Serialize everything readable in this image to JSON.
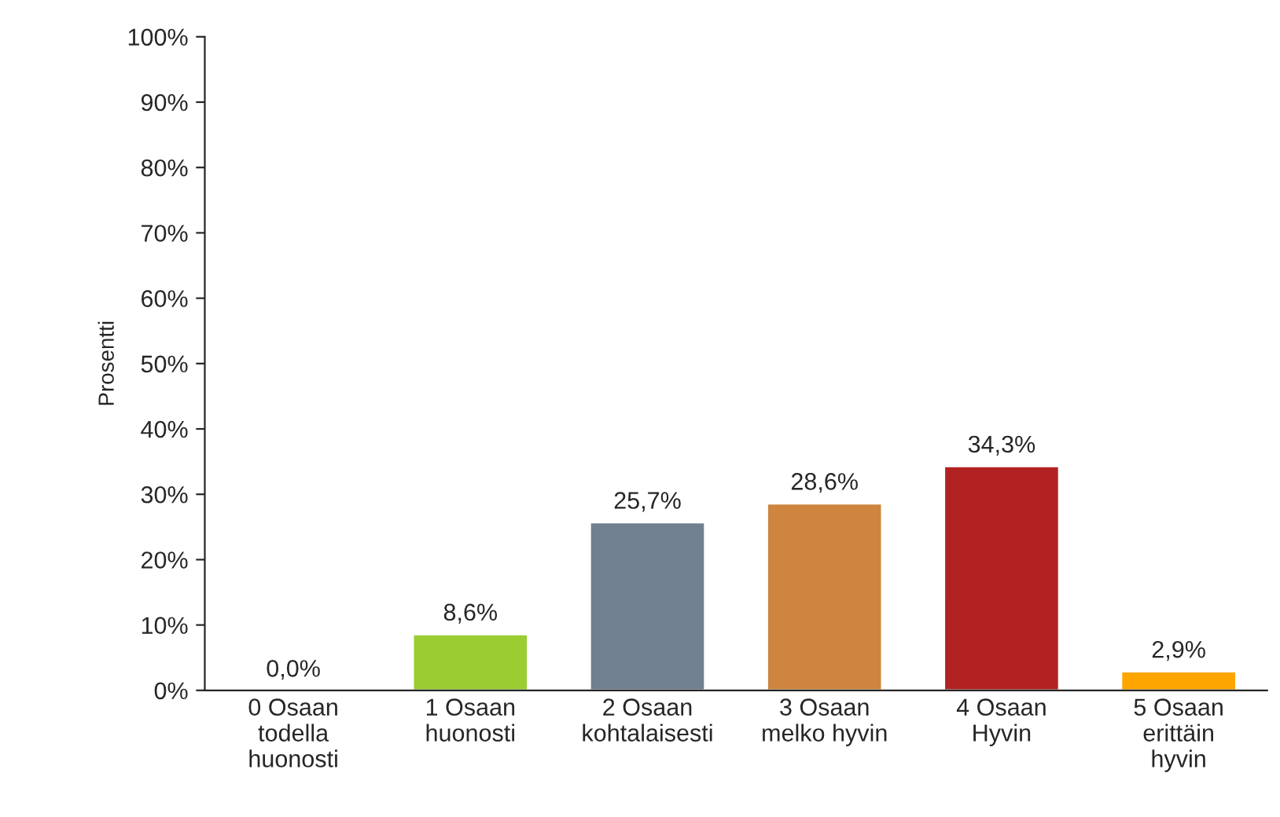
{
  "chart_data": {
    "type": "bar",
    "ylabel": "Prosentti",
    "categories": [
      "0 Osaan\ntodella\nhuonosti",
      "1 Osaan\nhuonosti",
      "2 Osaan\nkohtalaisesti",
      "3 Osaan\nmelko hyvin",
      "4 Osaan\nHyvin",
      "5 Osaan\nerittäin\nhyvin"
    ],
    "values": [
      0.0,
      8.6,
      25.7,
      28.6,
      34.3,
      2.9
    ],
    "colors": [
      null,
      "#9acd32",
      "#708090",
      "#cd853f",
      "#b22222",
      "#ffa500"
    ],
    "value_labels": [
      "0,0%",
      "8,6%",
      "25,7%",
      "28,6%",
      "34,3%",
      "2,9%"
    ],
    "ylim": [
      0,
      100
    ],
    "yticks": [
      {
        "value": 0,
        "label": "0%"
      },
      {
        "value": 10,
        "label": "10%"
      },
      {
        "value": 20,
        "label": "20%"
      },
      {
        "value": 30,
        "label": "30%"
      },
      {
        "value": 40,
        "label": "40%"
      },
      {
        "value": 50,
        "label": "50%"
      },
      {
        "value": 60,
        "label": "60%"
      },
      {
        "value": 70,
        "label": "70%"
      },
      {
        "value": 80,
        "label": "80%"
      },
      {
        "value": 90,
        "label": "90%"
      },
      {
        "value": 100,
        "label": "100%"
      }
    ],
    "grid": false,
    "legend": false
  }
}
